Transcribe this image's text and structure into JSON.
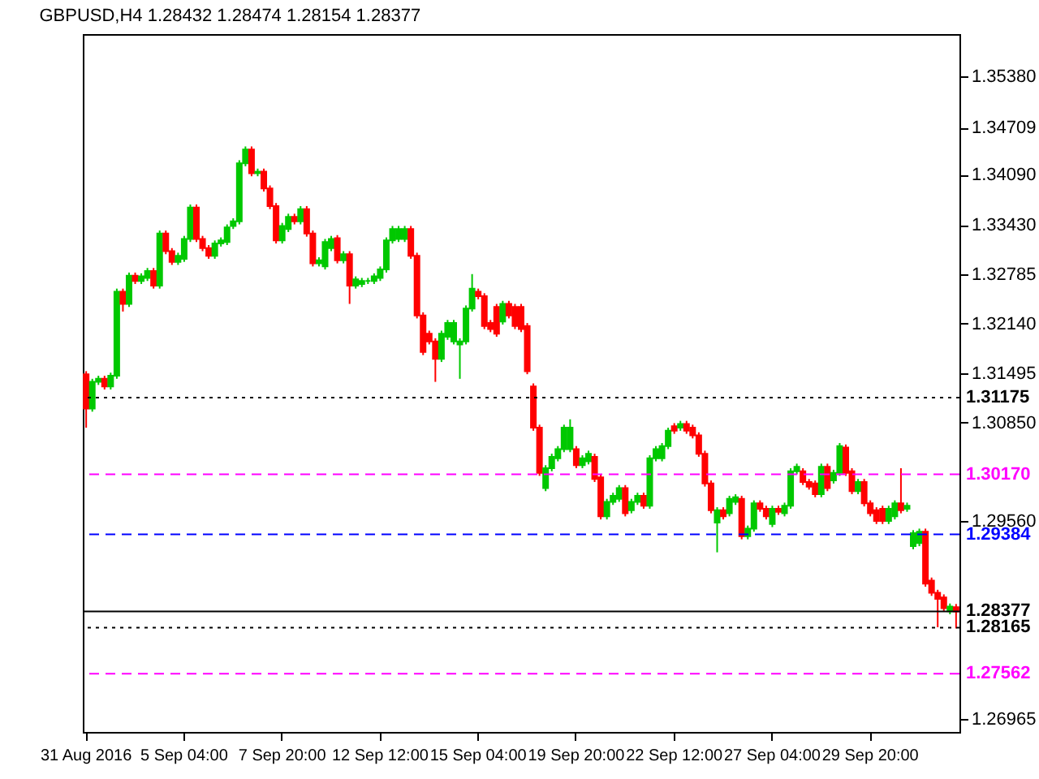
{
  "chart_data": {
    "type": "candlestick",
    "title": "GBPUSD,H4  1.28432 1.28474 1.28154 1.28377",
    "categories": [
      "31 Aug 2016",
      null,
      null,
      null,
      null,
      null,
      null,
      null,
      null,
      null,
      null,
      null,
      null,
      null,
      null,
      null,
      "5 Sep 04:00",
      null,
      null,
      null,
      null,
      null,
      null,
      null,
      null,
      null,
      null,
      null,
      null,
      null,
      null,
      null,
      "7 Sep 20:00",
      null,
      null,
      null,
      null,
      null,
      null,
      null,
      null,
      null,
      null,
      null,
      null,
      null,
      null,
      null,
      "12 Sep 12:00",
      null,
      null,
      null,
      null,
      null,
      null,
      null,
      null,
      null,
      null,
      null,
      null,
      null,
      null,
      null,
      "15 Sep 04:00",
      null,
      null,
      null,
      null,
      null,
      null,
      null,
      null,
      null,
      null,
      null,
      null,
      null,
      null,
      null,
      "19 Sep 20:00",
      null,
      null,
      null,
      null,
      null,
      null,
      null,
      null,
      null,
      null,
      null,
      null,
      null,
      null,
      null,
      "22 Sep 12:00",
      null,
      null,
      null,
      null,
      null,
      null,
      null,
      null,
      null,
      null,
      null,
      null,
      null,
      null,
      null,
      "27 Sep 04:00",
      null,
      null,
      null,
      null,
      null,
      null,
      null,
      null,
      null,
      null,
      null,
      null,
      null,
      null,
      null,
      "29 Sep 20:00",
      null,
      null,
      null,
      null,
      null,
      null,
      null,
      null,
      null,
      null,
      null,
      null,
      null,
      null
    ],
    "ohlc": [
      [
        1.3148,
        1.3152,
        1.3078,
        1.3103
      ],
      [
        1.3103,
        1.3142,
        1.3099,
        1.3138
      ],
      [
        1.3138,
        1.3146,
        1.3134,
        1.3142
      ],
      [
        1.3142,
        1.3146,
        1.3128,
        1.3132
      ],
      [
        1.3132,
        1.315,
        1.3128,
        1.3146
      ],
      [
        1.3146,
        1.326,
        1.3142,
        1.3256
      ],
      [
        1.3256,
        1.326,
        1.323,
        1.324
      ],
      [
        1.324,
        1.3281,
        1.3236,
        1.3277
      ],
      [
        1.3277,
        1.3281,
        1.3266,
        1.327
      ],
      [
        1.327,
        1.328,
        1.3266,
        1.3276
      ],
      [
        1.3274,
        1.3287,
        1.327,
        1.3283
      ],
      [
        1.3283,
        1.3287,
        1.326,
        1.3264
      ],
      [
        1.3264,
        1.3336,
        1.326,
        1.3332
      ],
      [
        1.3332,
        1.3336,
        1.3305,
        1.3309
      ],
      [
        1.3309,
        1.3313,
        1.3291,
        1.3295
      ],
      [
        1.3295,
        1.3307,
        1.3291,
        1.3303
      ],
      [
        1.3299,
        1.3329,
        1.3295,
        1.3325
      ],
      [
        1.3325,
        1.337,
        1.3321,
        1.3366
      ],
      [
        1.3366,
        1.337,
        1.3321,
        1.3325
      ],
      [
        1.3325,
        1.3329,
        1.3309,
        1.3313
      ],
      [
        1.3313,
        1.3317,
        1.3299,
        1.3303
      ],
      [
        1.3303,
        1.3323,
        1.3299,
        1.3319
      ],
      [
        1.3319,
        1.3327,
        1.3315,
        1.3323
      ],
      [
        1.3321,
        1.3344,
        1.3317,
        1.334
      ],
      [
        1.3342,
        1.3352,
        1.3338,
        1.3348
      ],
      [
        1.3348,
        1.3428,
        1.3344,
        1.3424
      ],
      [
        1.3424,
        1.3446,
        1.342,
        1.3442
      ],
      [
        1.3442,
        1.3446,
        1.3407,
        1.3411
      ],
      [
        1.3411,
        1.3417,
        1.3407,
        1.3413
      ],
      [
        1.3413,
        1.3417,
        1.3387,
        1.3391
      ],
      [
        1.3391,
        1.3395,
        1.3364,
        1.3368
      ],
      [
        1.3368,
        1.3372,
        1.3319,
        1.3323
      ],
      [
        1.3323,
        1.3346,
        1.3319,
        1.3342
      ],
      [
        1.3338,
        1.3358,
        1.3334,
        1.3354
      ],
      [
        1.3354,
        1.3358,
        1.3344,
        1.3348
      ],
      [
        1.3348,
        1.3368,
        1.3344,
        1.3364
      ],
      [
        1.3364,
        1.3368,
        1.3328,
        1.3332
      ],
      [
        1.3332,
        1.3336,
        1.3289,
        1.3293
      ],
      [
        1.3293,
        1.3301,
        1.3289,
        1.3297
      ],
      [
        1.3289,
        1.3325,
        1.3285,
        1.3321
      ],
      [
        1.3313,
        1.3329,
        1.3309,
        1.3325
      ],
      [
        1.3326,
        1.333,
        1.3293,
        1.3297
      ],
      [
        1.3297,
        1.3309,
        1.3293,
        1.3305
      ],
      [
        1.3305,
        1.3309,
        1.324,
        1.3264
      ],
      [
        1.3264,
        1.3276,
        1.326,
        1.3272
      ],
      [
        1.3266,
        1.3274,
        1.3262,
        1.327
      ],
      [
        1.327,
        1.3274,
        1.3266,
        1.327
      ],
      [
        1.327,
        1.328,
        1.3266,
        1.3276
      ],
      [
        1.3274,
        1.3289,
        1.327,
        1.3285
      ],
      [
        1.3285,
        1.3327,
        1.3281,
        1.3323
      ],
      [
        1.3323,
        1.3342,
        1.3319,
        1.3338
      ],
      [
        1.3325,
        1.3342,
        1.3321,
        1.3338
      ],
      [
        1.3325,
        1.3342,
        1.3321,
        1.3338
      ],
      [
        1.3338,
        1.3342,
        1.3299,
        1.3303
      ],
      [
        1.3303,
        1.3307,
        1.3221,
        1.3225
      ],
      [
        1.3225,
        1.3229,
        1.3173,
        1.3177
      ],
      [
        1.3201,
        1.3205,
        1.3187,
        1.3191
      ],
      [
        1.3191,
        1.3195,
        1.3138,
        1.3168
      ],
      [
        1.3168,
        1.3205,
        1.3164,
        1.3201
      ],
      [
        1.3197,
        1.3219,
        1.3193,
        1.3215
      ],
      [
        1.3191,
        1.3219,
        1.3187,
        1.3215
      ],
      [
        1.3187,
        1.3195,
        1.3142,
        1.3191
      ],
      [
        1.3191,
        1.3238,
        1.3187,
        1.3234
      ],
      [
        1.3234,
        1.3279,
        1.323,
        1.326
      ],
      [
        1.3256,
        1.326,
        1.3246,
        1.325
      ],
      [
        1.325,
        1.3254,
        1.3207,
        1.3211
      ],
      [
        1.3215,
        1.3219,
        1.3203,
        1.3207
      ],
      [
        1.3236,
        1.324,
        1.3197,
        1.3201
      ],
      [
        1.3217,
        1.3244,
        1.3213,
        1.324
      ],
      [
        1.324,
        1.3244,
        1.3221,
        1.3225
      ],
      [
        1.3236,
        1.324,
        1.3207,
        1.3211
      ],
      [
        1.3236,
        1.324,
        1.3203,
        1.3207
      ],
      [
        1.3211,
        1.3215,
        1.3148,
        1.3152
      ],
      [
        1.3132,
        1.3136,
        1.3074,
        1.3078
      ],
      [
        1.3078,
        1.3082,
        1.3015,
        1.3019
      ],
      [
        1.2999,
        1.3029,
        1.2995,
        1.3025
      ],
      [
        1.3025,
        1.3044,
        1.3021,
        1.304
      ],
      [
        1.3038,
        1.3054,
        1.3034,
        1.305
      ],
      [
        1.305,
        1.3082,
        1.3046,
        1.3078
      ],
      [
        1.305,
        1.3089,
        1.3046,
        1.3078
      ],
      [
        1.305,
        1.3054,
        1.3025,
        1.3029
      ],
      [
        1.3029,
        1.3042,
        1.3025,
        1.3038
      ],
      [
        1.3034,
        1.3048,
        1.303,
        1.3044
      ],
      [
        1.304,
        1.3044,
        1.3007,
        1.3011
      ],
      [
        1.3013,
        1.3017,
        1.2958,
        1.2962
      ],
      [
        1.2962,
        1.2985,
        1.2958,
        1.2981
      ],
      [
        1.2981,
        1.2993,
        1.2977,
        1.2989
      ],
      [
        1.2985,
        1.3003,
        1.2981,
        1.2999
      ],
      [
        1.2999,
        1.3003,
        1.2962,
        1.2966
      ],
      [
        1.297,
        1.2985,
        1.2966,
        1.2981
      ],
      [
        1.2981,
        1.2993,
        1.2977,
        1.2989
      ],
      [
        1.2989,
        1.2993,
        1.2972,
        1.2976
      ],
      [
        1.2976,
        1.3042,
        1.2972,
        1.3038
      ],
      [
        1.3038,
        1.3054,
        1.3034,
        1.305
      ],
      [
        1.3038,
        1.3058,
        1.3034,
        1.3054
      ],
      [
        1.3054,
        1.3078,
        1.305,
        1.3074
      ],
      [
        1.308,
        1.3084,
        1.307,
        1.3074
      ],
      [
        1.3078,
        1.3087,
        1.3074,
        1.3083
      ],
      [
        1.3083,
        1.3087,
        1.307,
        1.3074
      ],
      [
        1.3078,
        1.3082,
        1.3064,
        1.3068
      ],
      [
        1.3068,
        1.3072,
        1.304,
        1.3044
      ],
      [
        1.3044,
        1.3048,
        1.3001,
        1.3005
      ],
      [
        1.3005,
        1.3009,
        1.2966,
        1.297
      ],
      [
        1.2954,
        1.2974,
        1.2915,
        1.297
      ],
      [
        1.297,
        1.2974,
        1.2958,
        1.2962
      ],
      [
        1.2966,
        1.2989,
        1.2962,
        1.2985
      ],
      [
        1.2981,
        1.2991,
        1.2977,
        1.2987
      ],
      [
        1.2985,
        1.2989,
        1.2932,
        1.2936
      ],
      [
        1.2936,
        1.295,
        1.2932,
        1.2946
      ],
      [
        1.2946,
        1.2983,
        1.2942,
        1.2979
      ],
      [
        1.2979,
        1.2983,
        1.2968,
        1.2972
      ],
      [
        1.2972,
        1.2976,
        1.2958,
        1.2962
      ],
      [
        1.2952,
        1.2976,
        1.2948,
        1.2972
      ],
      [
        1.2972,
        1.2976,
        1.2964,
        1.2968
      ],
      [
        1.2966,
        1.298,
        1.2962,
        1.2976
      ],
      [
        1.2976,
        1.3025,
        1.2972,
        1.3021
      ],
      [
        1.3021,
        1.3031,
        1.3017,
        1.3027
      ],
      [
        1.3021,
        1.3025,
        1.3003,
        1.3007
      ],
      [
        1.3007,
        1.3011,
        1.2997,
        1.3001
      ],
      [
        1.3005,
        1.3009,
        1.2987,
        1.2991
      ],
      [
        1.2991,
        1.3031,
        1.2987,
        1.3027
      ],
      [
        1.3027,
        1.3031,
        1.2995,
        1.2999
      ],
      [
        1.3009,
        1.3023,
        1.3005,
        1.3019
      ],
      [
        1.3019,
        1.3058,
        1.3015,
        1.3054
      ],
      [
        1.3052,
        1.3056,
        1.3015,
        1.3019
      ],
      [
        1.3021,
        1.3025,
        1.2991,
        1.2995
      ],
      [
        1.2995,
        1.3011,
        1.2991,
        1.3007
      ],
      [
        1.3007,
        1.3011,
        1.2975,
        1.2979
      ],
      [
        1.2979,
        1.2983,
        1.2962,
        1.2966
      ],
      [
        1.297,
        1.2974,
        1.2952,
        1.2956
      ],
      [
        1.2972,
        1.2976,
        1.2952,
        1.2956
      ],
      [
        1.2956,
        1.2976,
        1.2952,
        1.2972
      ],
      [
        1.2962,
        1.2983,
        1.2958,
        1.2979
      ],
      [
        1.2979,
        1.3025,
        1.2966,
        1.297
      ],
      [
        1.2972,
        1.298,
        1.2968,
        1.2976
      ],
      [
        1.2923,
        1.2944,
        1.2919,
        1.294
      ],
      [
        1.2927,
        1.2946,
        1.2923,
        1.2942
      ],
      [
        1.2942,
        1.2946,
        1.287,
        1.2874
      ],
      [
        1.2878,
        1.2882,
        1.2858,
        1.2862
      ],
      [
        1.2862,
        1.2866,
        1.2817,
        1.2854
      ],
      [
        1.2856,
        1.286,
        1.2838,
        1.2842
      ],
      [
        1.2838,
        1.2848,
        1.2834,
        1.2844
      ],
      [
        1.28432,
        1.28474,
        1.28154,
        1.28377
      ]
    ],
    "ylim": [
      1.268,
      1.3593
    ],
    "yticks": [
      {
        "value": 1.3538,
        "label": "1.35380"
      },
      {
        "value": 1.34709,
        "label": "1.34709"
      },
      {
        "value": 1.3409,
        "label": "1.34090"
      },
      {
        "value": 1.3343,
        "label": "1.33430"
      },
      {
        "value": 1.32785,
        "label": "1.32785"
      },
      {
        "value": 1.3214,
        "label": "1.32140"
      },
      {
        "value": 1.31495,
        "label": "1.31495"
      },
      {
        "value": 1.3085,
        "label": "1.30850"
      },
      {
        "value": 1.2956,
        "label": "1.29560"
      },
      {
        "value": 1.26965,
        "label": "1.26965"
      }
    ],
    "ref_lines": [
      {
        "axis": "y",
        "value": 1.31175,
        "label": "1.31175",
        "color": "#000000",
        "line_style": "dotted"
      },
      {
        "axis": "y",
        "value": 1.3017,
        "label": "1.30170",
        "color": "#ff00ff",
        "line_style": "dashed"
      },
      {
        "axis": "y",
        "value": 1.29384,
        "label": "1.29384",
        "color": "#0000ff",
        "line_style": "dashed"
      },
      {
        "axis": "y",
        "value": 1.28377,
        "label": "1.28377",
        "color": "#000000",
        "line_style": "solid"
      },
      {
        "axis": "y",
        "value": 1.28165,
        "label": "1.28165",
        "color": "#000000",
        "line_style": "dotted"
      },
      {
        "axis": "y",
        "value": 1.27562,
        "label": "1.27562",
        "color": "#ff00ff",
        "line_style": "dashed"
      }
    ]
  }
}
